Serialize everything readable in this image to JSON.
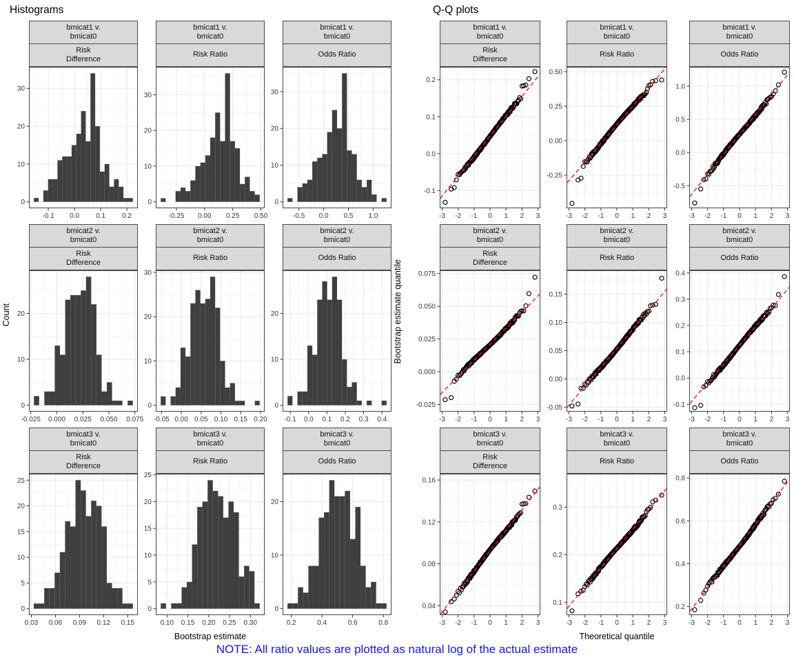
{
  "note": {
    "text": "NOTE: All ratio values are plotted as natural log of the actual estimate",
    "color": "#1414ef"
  },
  "colors": {
    "bar": "#3f3f3f",
    "strip_bg": "#d9d9d9",
    "panel_border": "#444444",
    "grid_major": "#e8e8e8",
    "grid_minor": "#f4f4f4",
    "qq_line": "#ff1a1a",
    "point_stroke": "#000000",
    "tick": "#333333"
  },
  "chart_data": {
    "histograms": {
      "type": "histogram-grid",
      "title": "Histograms",
      "xlabel": "Bootstrap estimate",
      "ylabel": "Count",
      "panels": [
        {
          "group": [
            "bmicat1 v.",
            "bmicat0"
          ],
          "measure": [
            "Risk",
            "Difference"
          ],
          "bin_start": -0.155,
          "bin_width": 0.018,
          "counts": [
            1,
            0,
            3,
            6,
            6,
            11,
            12,
            12,
            15,
            18,
            24,
            16,
            34,
            20,
            8,
            10,
            4,
            6,
            4,
            1,
            1
          ],
          "xlim": [
            -0.174,
            0.242
          ],
          "x_tick_values": [
            -0.1,
            0,
            0.1,
            0.2
          ],
          "x_tick_labels": [
            "-0.1",
            "0.0",
            "0.1",
            "0.2"
          ],
          "y_tick_values": [
            0,
            10,
            20,
            30
          ],
          "y_tick_labels": [
            "0",
            "10",
            "20",
            "30"
          ]
        },
        {
          "group": [
            "bmicat1 v.",
            "bmicat0"
          ],
          "measure": [
            "Risk Ratio"
          ],
          "bin_start": -0.39,
          "bin_width": 0.044,
          "counts": [
            1,
            0,
            0,
            3,
            4,
            3,
            6,
            10,
            11,
            13,
            18,
            25,
            17,
            36,
            17,
            15,
            5,
            7,
            3,
            2
          ],
          "xlim": [
            -0.434,
            0.534
          ],
          "x_tick_values": [
            -0.25,
            0,
            0.25,
            0.5
          ],
          "x_tick_labels": [
            "-0.25",
            "0.00",
            "0.25",
            "0.50"
          ],
          "y_tick_values": [
            0,
            10,
            20,
            30
          ],
          "y_tick_labels": [
            "0",
            "10",
            "20",
            "30"
          ]
        },
        {
          "group": [
            "bmicat1 v.",
            "bmicat0"
          ],
          "measure": [
            "Odds Ratio"
          ],
          "bin_start": -0.73,
          "bin_width": 0.1,
          "counts": [
            1,
            0,
            4,
            5,
            6,
            11,
            12,
            13,
            19,
            25,
            20,
            35,
            14,
            13,
            6,
            4,
            6,
            2,
            0,
            1
          ],
          "xlim": [
            -0.83,
            1.37
          ],
          "x_tick_values": [
            -0.5,
            0,
            0.5,
            1.0
          ],
          "x_tick_labels": [
            "-0.5",
            "0.0",
            "0.5",
            "1.0"
          ],
          "y_tick_values": [
            0,
            10,
            20,
            30
          ],
          "y_tick_labels": [
            "0",
            "10",
            "20",
            "30"
          ]
        },
        {
          "group": [
            "bmicat2 v.",
            "bmicat0"
          ],
          "measure": [
            "Risk",
            "Difference"
          ],
          "bin_start": -0.022,
          "bin_width": 0.005,
          "counts": [
            2,
            0,
            3,
            3,
            13,
            11,
            23,
            24,
            24,
            25,
            28,
            22,
            11,
            3,
            5,
            1,
            1,
            0,
            1
          ],
          "xlim": [
            -0.0268,
            0.0778
          ],
          "x_tick_values": [
            -0.025,
            0,
            0.025,
            0.05,
            0.075
          ],
          "x_tick_labels": [
            "-0.025",
            "0.000",
            "0.025",
            "0.050",
            "0.075"
          ],
          "y_tick_values": [
            0,
            10,
            20
          ],
          "y_tick_labels": [
            "0",
            "10",
            "20"
          ]
        },
        {
          "group": [
            "bmicat2 v.",
            "bmicat0"
          ],
          "measure": [
            "Risk Ratio"
          ],
          "bin_start": -0.052,
          "bin_width": 0.0125,
          "counts": [
            2,
            0,
            2,
            4,
            13,
            11,
            23,
            26,
            23,
            24,
            29,
            22,
            10,
            4,
            5,
            1,
            1,
            0,
            0,
            1
          ],
          "xlim": [
            -0.0645,
            0.2105
          ],
          "x_tick_values": [
            -0.05,
            0,
            0.05,
            0.1,
            0.15,
            0.2
          ],
          "x_tick_labels": [
            "-0.05",
            "0.00",
            "0.05",
            "0.10",
            "0.15",
            "0.20"
          ],
          "y_tick_values": [
            0,
            10,
            20,
            30
          ],
          "y_tick_labels": [
            "0",
            "10",
            "20",
            "30"
          ]
        },
        {
          "group": [
            "bmicat2 v.",
            "bmicat0"
          ],
          "measure": [
            "Odds Ratio"
          ],
          "bin_start": -0.115,
          "bin_width": 0.027,
          "counts": [
            2,
            0,
            3,
            3,
            13,
            11,
            23,
            27,
            23,
            28,
            23,
            10,
            4,
            5,
            1,
            0,
            1,
            0,
            0,
            1
          ],
          "xlim": [
            -0.142,
            0.452
          ],
          "x_tick_values": [
            -0.1,
            0,
            0.1,
            0.2,
            0.3,
            0.4
          ],
          "x_tick_labels": [
            "-0.1",
            "0.0",
            "0.1",
            "0.2",
            "0.3",
            "0.4"
          ],
          "y_tick_values": [
            0,
            10,
            20
          ],
          "y_tick_labels": [
            "0",
            "10",
            "20"
          ]
        },
        {
          "group": [
            "bmicat3 v.",
            "bmicat0"
          ],
          "measure": [
            "Risk",
            "Difference"
          ],
          "bin_start": 0.033,
          "bin_width": 0.0065,
          "counts": [
            1,
            1,
            4,
            4,
            7,
            11,
            17,
            16,
            25,
            23,
            18,
            21,
            20,
            16,
            5,
            4,
            4,
            1,
            1
          ],
          "xlim": [
            0.027,
            0.1627
          ],
          "x_tick_values": [
            0.03,
            0.06,
            0.09,
            0.12,
            0.15
          ],
          "x_tick_labels": [
            "0.03",
            "0.06",
            "0.09",
            "0.12",
            "0.15"
          ],
          "y_tick_values": [
            0,
            5,
            10,
            15,
            20,
            25
          ],
          "y_tick_labels": [
            "0",
            "5",
            "10",
            "15",
            "20",
            "25"
          ]
        },
        {
          "group": [
            "bmicat3 v.",
            "bmicat0"
          ],
          "measure": [
            "Risk Ratio"
          ],
          "bin_start": 0.085,
          "bin_width": 0.0125,
          "counts": [
            1,
            0,
            1,
            1,
            4,
            5,
            12,
            19,
            20,
            24,
            22,
            21,
            17,
            20,
            18,
            6,
            8,
            7,
            1
          ],
          "xlim": [
            0.073,
            0.3344
          ],
          "x_tick_values": [
            0.1,
            0.15,
            0.2,
            0.25,
            0.3
          ],
          "x_tick_labels": [
            "0.10",
            "0.15",
            "0.20",
            "0.25",
            "0.30"
          ],
          "y_tick_values": [
            0,
            5,
            10,
            15,
            20,
            25
          ],
          "y_tick_labels": [
            "0",
            "5",
            "10",
            "15",
            "20",
            "25"
          ]
        },
        {
          "group": [
            "bmicat3 v.",
            "bmicat0"
          ],
          "measure": [
            "Odds Ratio"
          ],
          "bin_start": 0.175,
          "bin_width": 0.034,
          "counts": [
            1,
            1,
            4,
            3,
            8,
            8,
            17,
            18,
            24,
            21,
            21,
            22,
            13,
            19,
            8,
            4,
            5,
            1,
            1
          ],
          "xlim": [
            0.143,
            0.853
          ],
          "x_tick_values": [
            0.2,
            0.4,
            0.6,
            0.8
          ],
          "x_tick_labels": [
            "0.2",
            "0.4",
            "0.6",
            "0.8"
          ],
          "y_tick_values": [
            0,
            10,
            20
          ],
          "y_tick_labels": [
            "0",
            "10",
            "20"
          ]
        }
      ]
    },
    "qq": {
      "type": "qq-grid",
      "title": "Q-Q plots",
      "xlabel": "Theoretical quantile",
      "ylabel": "Bootstrap estimate quantile",
      "n_points": 200,
      "xlim": [
        -3.15,
        3.15
      ],
      "x_tick_values": [
        -3,
        -2,
        -1,
        0,
        1,
        2,
        3
      ],
      "x_tick_labels": [
        "-3",
        "-2",
        "-1",
        "0",
        "1",
        "2",
        "3"
      ],
      "panels": [
        {
          "group": [
            "bmicat1 v.",
            "bmicat0"
          ],
          "measure": [
            "Risk",
            "Difference"
          ],
          "line": {
            "intercept": 0.047,
            "slope": 0.054
          },
          "ylim": [
            -0.148,
            0.235
          ],
          "y_tick_values": [
            -0.1,
            0,
            0.1,
            0.2
          ],
          "y_tick_labels": [
            "-0.1",
            "0.0",
            "0.1",
            "0.2"
          ],
          "outliers": [
            [
              -2.81,
              -0.132
            ],
            [
              -2.43,
              -0.096
            ],
            [
              -2.24,
              -0.092
            ],
            [
              2.03,
              0.183
            ],
            [
              2.12,
              0.184
            ],
            [
              2.24,
              0.186
            ],
            [
              2.43,
              0.203
            ],
            [
              2.81,
              0.222
            ]
          ]
        },
        {
          "group": [
            "bmicat1 v.",
            "bmicat0"
          ],
          "measure": [
            "Risk Ratio"
          ],
          "line": {
            "intercept": 0.115,
            "slope": 0.135
          },
          "ylim": [
            -0.49,
            0.535
          ],
          "y_tick_values": [
            -0.25,
            0,
            0.25,
            0.5
          ],
          "y_tick_labels": [
            "-0.25",
            "0.00",
            "0.25",
            "0.50"
          ],
          "outliers": [
            [
              -2.81,
              -0.455
            ],
            [
              -2.43,
              -0.285
            ],
            [
              -2.24,
              -0.272
            ],
            [
              2.03,
              0.4
            ],
            [
              2.12,
              0.405
            ],
            [
              2.24,
              0.43
            ],
            [
              2.43,
              0.435
            ],
            [
              2.81,
              0.44
            ]
          ]
        },
        {
          "group": [
            "bmicat1 v.",
            "bmicat0"
          ],
          "measure": [
            "Odds Ratio"
          ],
          "line": {
            "intercept": 0.27,
            "slope": 0.3
          },
          "ylim": [
            -0.84,
            1.29
          ],
          "y_tick_values": [
            -0.5,
            0,
            0.5,
            1.0
          ],
          "y_tick_labels": [
            "-0.5",
            "0.0",
            "0.5",
            "1.0"
          ],
          "outliers": [
            [
              -2.81,
              -0.76
            ],
            [
              -2.43,
              -0.55
            ],
            [
              2.43,
              1.02
            ],
            [
              2.81,
              1.21
            ]
          ]
        },
        {
          "group": [
            "bmicat2 v.",
            "bmicat0"
          ],
          "measure": [
            "Risk",
            "Difference"
          ],
          "line": {
            "intercept": 0.021,
            "slope": 0.0123
          },
          "ylim": [
            -0.0305,
            0.0775
          ],
          "y_tick_values": [
            -0.025,
            0,
            0.025,
            0.05,
            0.075
          ],
          "y_tick_labels": [
            "-0.025",
            "0.000",
            "0.025",
            "0.050",
            "0.075"
          ],
          "outliers": [
            [
              -2.81,
              -0.0213
            ],
            [
              -2.43,
              -0.0198
            ],
            [
              2.43,
              0.0597
            ],
            [
              2.81,
              0.0722
            ]
          ]
        },
        {
          "group": [
            "bmicat2 v.",
            "bmicat0"
          ],
          "measure": [
            "Risk Ratio"
          ],
          "line": {
            "intercept": 0.054,
            "slope": 0.0335
          },
          "ylim": [
            -0.058,
            0.192
          ],
          "y_tick_values": [
            -0.05,
            0,
            0.05,
            0.1,
            0.15
          ],
          "y_tick_labels": [
            "-0.05",
            "0.00",
            "0.05",
            "0.10",
            "0.15"
          ],
          "outliers": [
            [
              -2.81,
              -0.048
            ],
            [
              -2.43,
              -0.0445
            ],
            [
              2.81,
              0.178
            ]
          ]
        },
        {
          "group": [
            "bmicat2 v.",
            "bmicat0"
          ],
          "measure": [
            "Odds Ratio"
          ],
          "line": {
            "intercept": 0.124,
            "slope": 0.071
          },
          "ylim": [
            -0.128,
            0.41
          ],
          "y_tick_values": [
            -0.1,
            0,
            0.1,
            0.2,
            0.3,
            0.4
          ],
          "y_tick_labels": [
            "-0.1",
            "0.0",
            "0.1",
            "0.2",
            "0.3",
            "0.4"
          ],
          "outliers": [
            [
              -2.81,
              -0.113
            ],
            [
              -2.43,
              -0.104
            ],
            [
              2.43,
              0.318
            ],
            [
              2.81,
              0.386
            ]
          ]
        },
        {
          "group": [
            "bmicat3 v.",
            "bmicat0"
          ],
          "measure": [
            "Risk",
            "Difference"
          ],
          "line": {
            "intercept": 0.0925,
            "slope": 0.0195
          },
          "ylim": [
            0.031,
            0.166
          ],
          "y_tick_values": [
            0.04,
            0.08,
            0.12,
            0.16
          ],
          "y_tick_labels": [
            "0.04",
            "0.08",
            "0.12",
            "0.16"
          ],
          "outliers": [
            [
              -2.81,
              0.034
            ],
            [
              2.03,
              0.137
            ],
            [
              2.12,
              0.1372
            ],
            [
              2.24,
              0.1375
            ],
            [
              2.43,
              0.1435
            ],
            [
              2.81,
              0.1495
            ]
          ]
        },
        {
          "group": [
            "bmicat3 v.",
            "bmicat0"
          ],
          "measure": [
            "Risk Ratio"
          ],
          "line": {
            "intercept": 0.213,
            "slope": 0.0405
          },
          "ylim": [
            0.073,
            0.37
          ],
          "y_tick_values": [
            0.1,
            0.2,
            0.3
          ],
          "y_tick_labels": [
            "0.1",
            "0.2",
            "0.3"
          ],
          "outliers": [
            [
              -2.81,
              0.082
            ],
            [
              2.24,
              0.311
            ],
            [
              2.43,
              0.3145
            ],
            [
              2.81,
              0.325
            ]
          ]
        },
        {
          "group": [
            "bmicat3 v.",
            "bmicat0"
          ],
          "measure": [
            "Odds Ratio"
          ],
          "line": {
            "intercept": 0.485,
            "slope": 0.099
          },
          "ylim": [
            0.16,
            0.82
          ],
          "y_tick_values": [
            0.2,
            0.4,
            0.6,
            0.8
          ],
          "y_tick_labels": [
            "0.2",
            "0.4",
            "0.6",
            "0.8"
          ],
          "outliers": [
            [
              -2.81,
              0.185
            ],
            [
              -2.43,
              0.2285
            ],
            [
              2.81,
              0.785
            ]
          ]
        }
      ]
    }
  }
}
